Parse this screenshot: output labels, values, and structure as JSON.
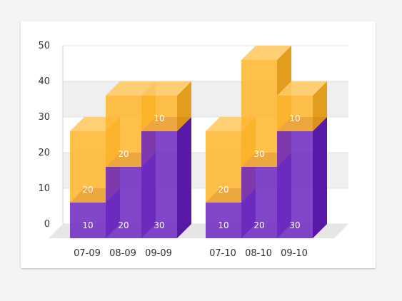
{
  "chart_data": {
    "type": "bar",
    "stacked": true,
    "three_d": true,
    "categories": [
      "07-09",
      "08-09",
      "09-09",
      "07-10",
      "08-10",
      "09-10"
    ],
    "series": [
      {
        "color": "#5b0fb8",
        "values": [
          10,
          20,
          30,
          10,
          20,
          30
        ]
      },
      {
        "color": "#ffad14",
        "values": [
          20,
          20,
          10,
          20,
          30,
          10
        ]
      }
    ],
    "ylim": [
      0,
      50
    ],
    "yticks": [
      "0",
      "10",
      "20",
      "30",
      "40",
      "50"
    ],
    "grid": "alternating horizontal bands"
  }
}
